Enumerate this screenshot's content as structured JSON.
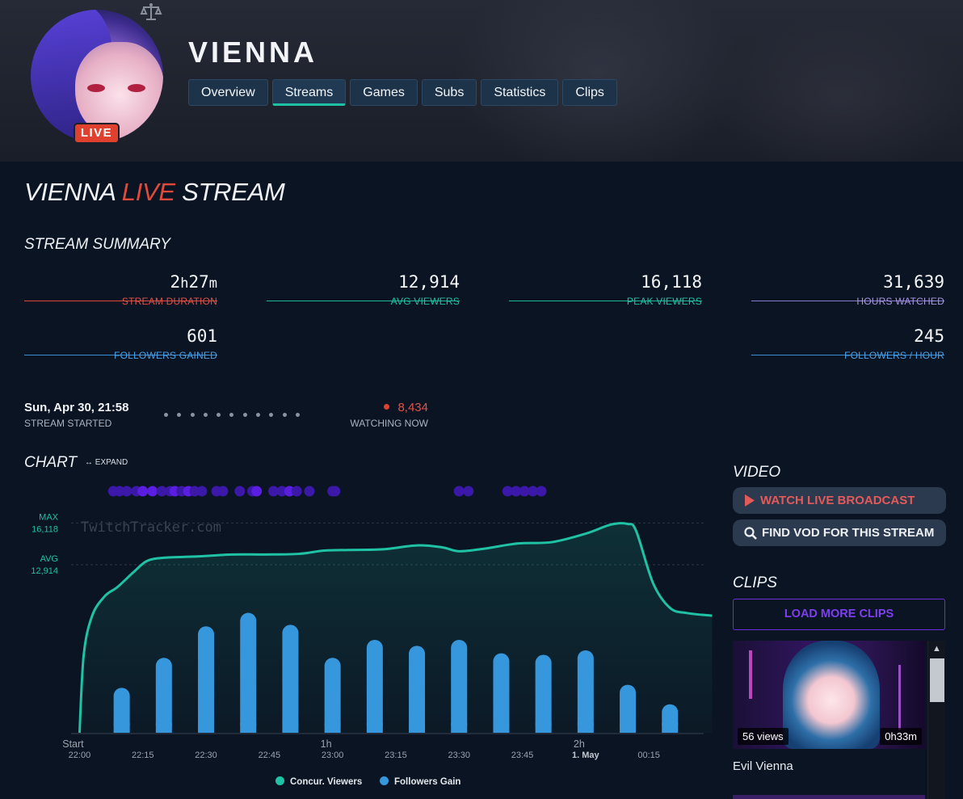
{
  "channel": {
    "name": "VIENNA",
    "live_badge": "LIVE"
  },
  "tabs": [
    "Overview",
    "Streams",
    "Games",
    "Subs",
    "Statistics",
    "Clips"
  ],
  "active_tab": "Streams",
  "page_title": {
    "pre": "VIENNA ",
    "live": "LIVE",
    "post": " STREAM"
  },
  "summary": {
    "heading": "STREAM SUMMARY",
    "duration_h": "2",
    "duration_h_unit": "h",
    "duration_m": "27",
    "duration_m_unit": "m",
    "duration_label": "STREAM DURATION",
    "avg_viewers": "12,914",
    "avg_viewers_label": "AVG VIEWERS",
    "peak_viewers": "16,118",
    "peak_viewers_label": "PEAK VIEWERS",
    "hours_watched": "31,639",
    "hours_watched_label": "HOURS WATCHED",
    "followers_gained": "601",
    "followers_gained_label": "FOLLOWERS GAINED",
    "followers_per_hour": "245",
    "followers_per_hour_label": "FOLLOWERS / HOUR"
  },
  "stream_started": {
    "value": "Sun, Apr 30, 21:58",
    "label": "STREAM STARTED"
  },
  "watching_now": {
    "value": "8,434",
    "label": "WATCHING NOW"
  },
  "chart_heading": "CHART",
  "expand_label": "↔ EXPAND",
  "chart_data": {
    "type": "line",
    "watermark": "TwitchTracker.com",
    "max_label": "MAX",
    "max_value": "16,118",
    "avg_label": "AVG",
    "avg_value": "12,914",
    "x_ticks": [
      {
        "label": "22:00",
        "top": "Start"
      },
      {
        "label": "22:15"
      },
      {
        "label": "22:30"
      },
      {
        "label": "22:45"
      },
      {
        "label": "23:00",
        "top": "1h"
      },
      {
        "label": "23:15"
      },
      {
        "label": "23:30"
      },
      {
        "label": "23:45"
      },
      {
        "label": "1. May",
        "top": "2h",
        "bold": true
      },
      {
        "label": "00:15"
      }
    ],
    "x_range_minutes": [
      -2,
      148
    ],
    "y_range": [
      0,
      17200
    ],
    "viewers": {
      "name": "Concur. Viewers",
      "color": "#1fc2a5",
      "points": [
        [
          0,
          0
        ],
        [
          1,
          6000
        ],
        [
          3,
          9000
        ],
        [
          6,
          10500
        ],
        [
          9,
          11200
        ],
        [
          13,
          12400
        ],
        [
          16,
          13200
        ],
        [
          20,
          13450
        ],
        [
          28,
          13550
        ],
        [
          36,
          13700
        ],
        [
          44,
          13700
        ],
        [
          52,
          13750
        ],
        [
          58,
          14000
        ],
        [
          64,
          14050
        ],
        [
          72,
          14100
        ],
        [
          80,
          14400
        ],
        [
          86,
          14250
        ],
        [
          90,
          13950
        ],
        [
          96,
          14150
        ],
        [
          104,
          14550
        ],
        [
          112,
          14650
        ],
        [
          120,
          15300
        ],
        [
          126,
          16000
        ],
        [
          130,
          16050
        ],
        [
          132,
          15500
        ],
        [
          136,
          11500
        ],
        [
          140,
          9600
        ],
        [
          144,
          9200
        ],
        [
          150,
          9000
        ]
      ]
    },
    "followers": {
      "name": "Followers Gain",
      "color": "#3797dc",
      "x": [
        10,
        20,
        30,
        40,
        50,
        60,
        70,
        80,
        90,
        100,
        110,
        120,
        130,
        140
      ],
      "values": [
        30,
        50,
        71,
        80,
        72,
        50,
        62,
        58,
        62,
        53,
        52,
        55,
        32,
        19
      ],
      "max": 90
    },
    "events": [
      {
        "x": 8.0,
        "c": "#3c18a8"
      },
      {
        "x": 9.5,
        "c": "#3c18a8"
      },
      {
        "x": 11.2,
        "c": "#3c18a8"
      },
      {
        "x": 13.5,
        "c": "#3c18a8"
      },
      {
        "x": 15.0,
        "c": "#5a1ee0"
      },
      {
        "x": 17.3,
        "c": "#5a1ee0"
      },
      {
        "x": 19.5,
        "c": "#3c18a8"
      },
      {
        "x": 21.5,
        "c": "#3c18a8"
      },
      {
        "x": 22.6,
        "c": "#5a1ee0"
      },
      {
        "x": 24.2,
        "c": "#3c18a8"
      },
      {
        "x": 25.8,
        "c": "#5a1ee0"
      },
      {
        "x": 27.3,
        "c": "#3c18a8"
      },
      {
        "x": 29.0,
        "c": "#3c18a8"
      },
      {
        "x": 32.5,
        "c": "#3c18a8"
      },
      {
        "x": 34.0,
        "c": "#3c18a8"
      },
      {
        "x": 38.0,
        "c": "#3c18a8"
      },
      {
        "x": 41.0,
        "c": "#3c18a8"
      },
      {
        "x": 42.0,
        "c": "#5a1ee0"
      },
      {
        "x": 46.0,
        "c": "#3c18a8"
      },
      {
        "x": 48.0,
        "c": "#3c18a8"
      },
      {
        "x": 49.8,
        "c": "#5a1ee0"
      },
      {
        "x": 51.5,
        "c": "#3c18a8"
      },
      {
        "x": 54.5,
        "c": "#3c18a8"
      },
      {
        "x": 60.0,
        "c": "#3c18a8"
      },
      {
        "x": 60.6,
        "c": "#3c18a8"
      },
      {
        "x": 90.0,
        "c": "#3c18a8"
      },
      {
        "x": 92.2,
        "c": "#3c18a8"
      },
      {
        "x": 101.5,
        "c": "#3c18a8"
      },
      {
        "x": 103.5,
        "c": "#3c18a8"
      },
      {
        "x": 105.5,
        "c": "#3c18a8"
      },
      {
        "x": 107.5,
        "c": "#3c18a8"
      },
      {
        "x": 109.5,
        "c": "#3c18a8"
      }
    ]
  },
  "legend": {
    "viewers": "Concur. Viewers",
    "followers": "Followers Gain"
  },
  "video": {
    "heading": "VIDEO",
    "watch_label": "WATCH LIVE BROADCAST",
    "find_label": "FIND VOD FOR THIS STREAM"
  },
  "clips": {
    "heading": "CLIPS",
    "load_more": "LOAD MORE CLIPS",
    "items": [
      {
        "views": "56 views",
        "duration": "0h33m",
        "title": "Evil Vienna"
      }
    ]
  },
  "colors": {
    "accent_teal": "#1fc2a5",
    "live_red": "#e04a3a",
    "followers_blue": "#3797dc",
    "purple": "#6a2ee0"
  },
  "icons": {
    "scale": "scale-icon",
    "play": "play-icon",
    "search": "search-icon"
  }
}
